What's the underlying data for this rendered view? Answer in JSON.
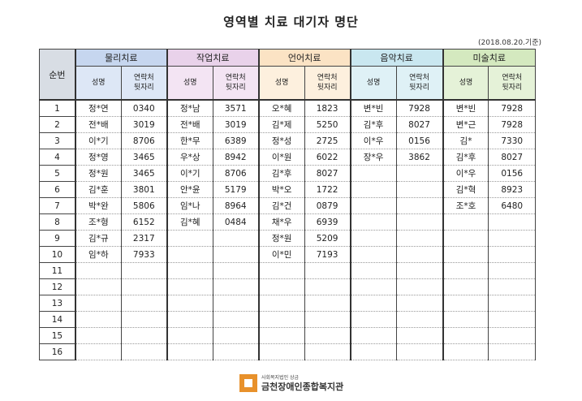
{
  "title": "영역별 치료 대기자 명단",
  "date": "(2018.08.20.기준)",
  "headers": {
    "seq": "순번",
    "categories": [
      {
        "id": "phy",
        "label": "물리치료"
      },
      {
        "id": "occ",
        "label": "작업치료"
      },
      {
        "id": "lang",
        "label": "언어치료"
      },
      {
        "id": "mus",
        "label": "음악치료"
      },
      {
        "id": "art",
        "label": "미술치료"
      }
    ],
    "name_label": "성명",
    "phone_label_1": "연락처",
    "phone_label_2": "뒷자리"
  },
  "rows": [
    {
      "seq": "1",
      "cells": [
        [
          "정*연",
          "0340"
        ],
        [
          "정*남",
          "3571"
        ],
        [
          "오*혜",
          "1823"
        ],
        [
          "변*빈",
          "7928"
        ],
        [
          "변*빈",
          "7928"
        ]
      ]
    },
    {
      "seq": "2",
      "cells": [
        [
          "전*배",
          "3019"
        ],
        [
          "전*배",
          "3019"
        ],
        [
          "김*제",
          "5250"
        ],
        [
          "김*후",
          "8027"
        ],
        [
          "변*근",
          "7928"
        ]
      ]
    },
    {
      "seq": "3",
      "cells": [
        [
          "이*기",
          "8706"
        ],
        [
          "한*무",
          "6389"
        ],
        [
          "정*성",
          "2725"
        ],
        [
          "이*우",
          "0156"
        ],
        [
          "김*",
          "7330"
        ]
      ]
    },
    {
      "seq": "4",
      "cells": [
        [
          "정*영",
          "3465"
        ],
        [
          "우*상",
          "8942"
        ],
        [
          "이*원",
          "6022"
        ],
        [
          "장*우",
          "3862"
        ],
        [
          "김*후",
          "8027"
        ]
      ]
    },
    {
      "seq": "5",
      "cells": [
        [
          "정*원",
          "3465"
        ],
        [
          "이*기",
          "8706"
        ],
        [
          "김*후",
          "8027"
        ],
        [
          "",
          ""
        ],
        [
          "이*우",
          "0156"
        ]
      ]
    },
    {
      "seq": "6",
      "cells": [
        [
          "김*훈",
          "3801"
        ],
        [
          "안*윤",
          "5179"
        ],
        [
          "박*오",
          "1722"
        ],
        [
          "",
          ""
        ],
        [
          "김*혁",
          "8923"
        ]
      ]
    },
    {
      "seq": "7",
      "cells": [
        [
          "박*완",
          "5806"
        ],
        [
          "임*나",
          "8964"
        ],
        [
          "김*건",
          "0879"
        ],
        [
          "",
          ""
        ],
        [
          "조*호",
          "6480"
        ]
      ]
    },
    {
      "seq": "8",
      "cells": [
        [
          "조*형",
          "6152"
        ],
        [
          "김*혜",
          "0484"
        ],
        [
          "채*우",
          "6939"
        ],
        [
          "",
          ""
        ],
        [
          "",
          ""
        ]
      ]
    },
    {
      "seq": "9",
      "cells": [
        [
          "김*규",
          "2317"
        ],
        [
          "",
          ""
        ],
        [
          "정*원",
          "5209"
        ],
        [
          "",
          ""
        ],
        [
          "",
          ""
        ]
      ]
    },
    {
      "seq": "10",
      "cells": [
        [
          "임*하",
          "7933"
        ],
        [
          "",
          ""
        ],
        [
          "이*민",
          "7193"
        ],
        [
          "",
          ""
        ],
        [
          "",
          ""
        ]
      ]
    },
    {
      "seq": "11",
      "cells": [
        [
          "",
          ""
        ],
        [
          "",
          ""
        ],
        [
          "",
          ""
        ],
        [
          "",
          ""
        ],
        [
          "",
          ""
        ]
      ]
    },
    {
      "seq": "12",
      "cells": [
        [
          "",
          ""
        ],
        [
          "",
          ""
        ],
        [
          "",
          ""
        ],
        [
          "",
          ""
        ],
        [
          "",
          ""
        ]
      ]
    },
    {
      "seq": "13",
      "cells": [
        [
          "",
          ""
        ],
        [
          "",
          ""
        ],
        [
          "",
          ""
        ],
        [
          "",
          ""
        ],
        [
          "",
          ""
        ]
      ]
    },
    {
      "seq": "14",
      "cells": [
        [
          "",
          ""
        ],
        [
          "",
          ""
        ],
        [
          "",
          ""
        ],
        [
          "",
          ""
        ],
        [
          "",
          ""
        ]
      ]
    },
    {
      "seq": "15",
      "cells": [
        [
          "",
          ""
        ],
        [
          "",
          ""
        ],
        [
          "",
          ""
        ],
        [
          "",
          ""
        ],
        [
          "",
          ""
        ]
      ]
    },
    {
      "seq": "16",
      "cells": [
        [
          "",
          ""
        ],
        [
          "",
          ""
        ],
        [
          "",
          ""
        ],
        [
          "",
          ""
        ],
        [
          "",
          ""
        ]
      ]
    }
  ],
  "footer": {
    "org_small": "사회복지법인 상금",
    "org_name": "금천장애인종합복지관",
    "logo_color": "#e8912b"
  }
}
